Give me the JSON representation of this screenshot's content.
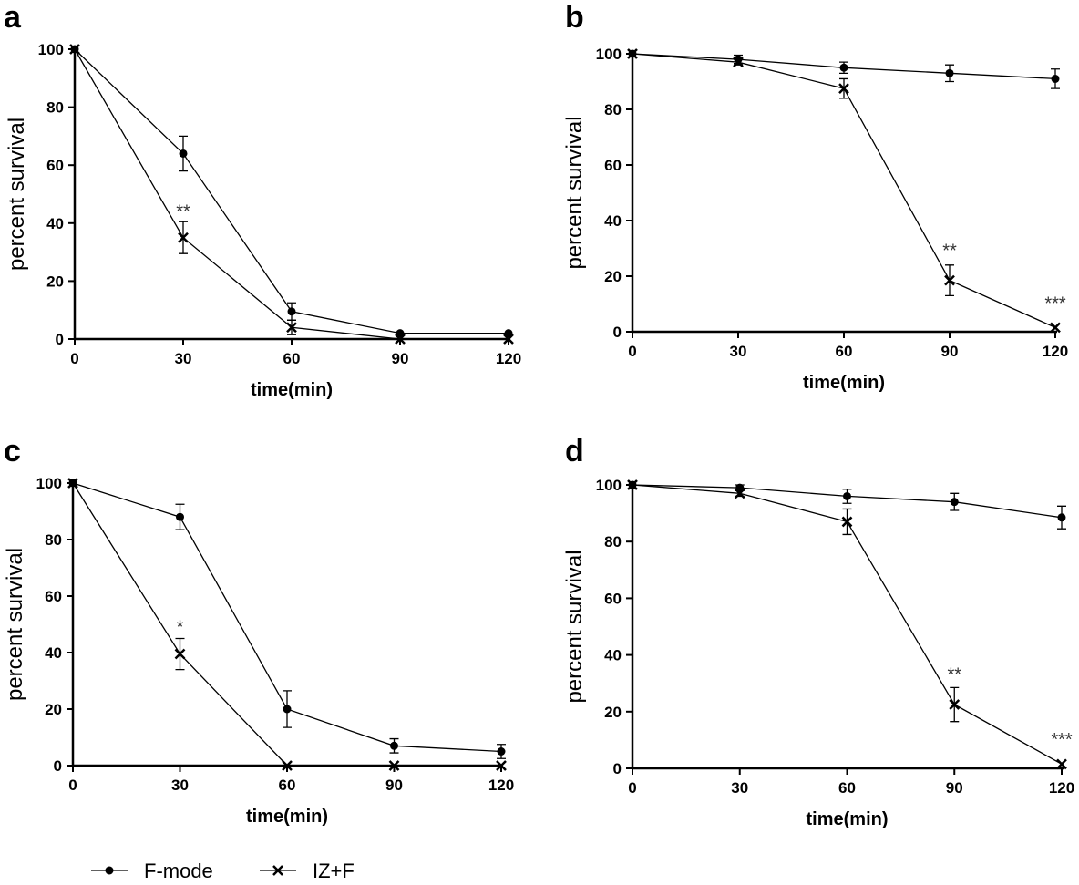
{
  "chart_data": [
    {
      "type": "line",
      "panel": "a",
      "xlabel": "time(min)",
      "ylabel": "percent survival",
      "xlim": [
        0,
        120
      ],
      "ylim": [
        0,
        100
      ],
      "xticks": [
        0,
        30,
        60,
        90,
        120
      ],
      "yticks": [
        0,
        20,
        40,
        60,
        80,
        100
      ],
      "x": [
        0,
        30,
        60,
        90,
        120
      ],
      "series": [
        {
          "name": "F-mode",
          "marker": "dot",
          "values": [
            100,
            64,
            9.5,
            2,
            2
          ],
          "errors": [
            0,
            6,
            3,
            0,
            0
          ]
        },
        {
          "name": "IZ+F",
          "marker": "cross",
          "values": [
            100,
            35,
            4,
            0,
            0
          ],
          "errors": [
            0,
            5.5,
            2.5,
            0,
            0
          ]
        }
      ],
      "annotations": [
        {
          "x": 30,
          "y": 42,
          "text": "**"
        }
      ]
    },
    {
      "type": "line",
      "panel": "b",
      "xlabel": "time(min)",
      "ylabel": "percent survival",
      "xlim": [
        0,
        120
      ],
      "ylim": [
        0,
        100
      ],
      "xticks": [
        0,
        30,
        60,
        90,
        120
      ],
      "yticks": [
        0,
        20,
        40,
        60,
        80,
        100
      ],
      "x": [
        0,
        30,
        60,
        90,
        120
      ],
      "series": [
        {
          "name": "F-mode",
          "marker": "dot",
          "values": [
            100,
            98,
            95,
            93,
            91
          ],
          "errors": [
            0,
            1.5,
            2,
            3,
            3.5
          ]
        },
        {
          "name": "IZ+F",
          "marker": "cross",
          "values": [
            100,
            97,
            87.5,
            18.5,
            1.5
          ],
          "errors": [
            0,
            1,
            3.5,
            5.5,
            0
          ]
        }
      ],
      "annotations": [
        {
          "x": 90,
          "y": 27,
          "text": "**"
        },
        {
          "x": 120,
          "y": 8,
          "text": "***"
        }
      ]
    },
    {
      "type": "line",
      "panel": "c",
      "xlabel": "time(min)",
      "ylabel": "percent survival",
      "xlim": [
        0,
        120
      ],
      "ylim": [
        0,
        100
      ],
      "xticks": [
        0,
        30,
        60,
        90,
        120
      ],
      "yticks": [
        0,
        20,
        40,
        60,
        80,
        100
      ],
      "x": [
        0,
        30,
        60,
        90,
        120
      ],
      "series": [
        {
          "name": "F-mode",
          "marker": "dot",
          "values": [
            100,
            88,
            20,
            7,
            5
          ],
          "errors": [
            0,
            4.5,
            6.5,
            2.5,
            2.5
          ]
        },
        {
          "name": "IZ+F",
          "marker": "cross",
          "values": [
            100,
            39.5,
            0,
            0,
            0
          ],
          "errors": [
            0,
            5.5,
            0,
            0,
            0
          ]
        }
      ],
      "annotations": [
        {
          "x": 30,
          "y": 47,
          "text": "*"
        }
      ]
    },
    {
      "type": "line",
      "panel": "d",
      "xlabel": "time(min)",
      "ylabel": "percent survival",
      "xlim": [
        0,
        120
      ],
      "ylim": [
        0,
        100
      ],
      "xticks": [
        0,
        30,
        60,
        90,
        120
      ],
      "yticks": [
        0,
        20,
        40,
        60,
        80,
        100
      ],
      "x": [
        0,
        30,
        60,
        90,
        120
      ],
      "series": [
        {
          "name": "F-mode",
          "marker": "dot",
          "values": [
            100,
            99,
            96,
            94,
            88.5
          ],
          "errors": [
            0,
            1,
            2.5,
            3,
            4
          ]
        },
        {
          "name": "IZ+F",
          "marker": "cross",
          "values": [
            100,
            97,
            87,
            22.5,
            1.5
          ],
          "errors": [
            0,
            1,
            4.5,
            6,
            0
          ]
        }
      ],
      "annotations": [
        {
          "x": 90,
          "y": 31,
          "text": "**"
        },
        {
          "x": 120,
          "y": 8,
          "text": "***"
        }
      ]
    }
  ],
  "legend": {
    "placement": "bottom-left",
    "items": [
      {
        "label": "F-mode",
        "marker": "dot"
      },
      {
        "label": "IZ+F",
        "marker": "cross"
      }
    ]
  }
}
